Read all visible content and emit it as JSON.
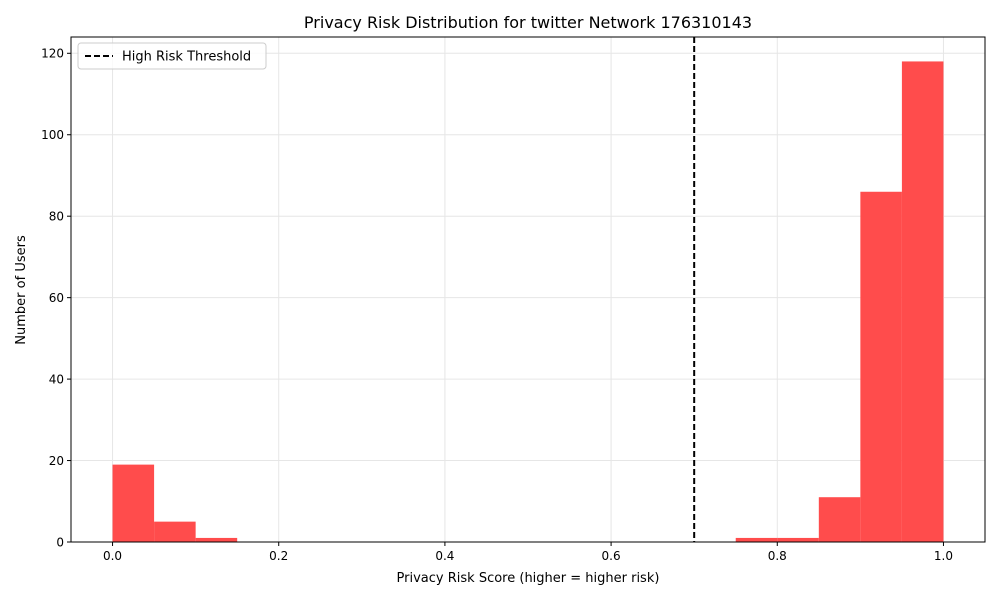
{
  "chart_data": {
    "type": "bar",
    "title": "Privacy Risk Distribution for twitter Network 176310143",
    "xlabel": "Privacy Risk Score (higher = higher risk)",
    "ylabel": "Number of Users",
    "xlim": [
      -0.05,
      1.05
    ],
    "ylim": [
      0,
      124
    ],
    "xticks": [
      0.0,
      0.2,
      0.4,
      0.6,
      0.8,
      1.0
    ],
    "xtick_labels": [
      "0.0",
      "0.2",
      "0.4",
      "0.6",
      "0.8",
      "1.0"
    ],
    "yticks": [
      0,
      20,
      40,
      60,
      80,
      100,
      120
    ],
    "ytick_labels": [
      "0",
      "20",
      "40",
      "60",
      "80",
      "100",
      "120"
    ],
    "grid": true,
    "bar_color": "#ff4c4c",
    "bins": [
      {
        "start": 0.0,
        "end": 0.05,
        "count": 19
      },
      {
        "start": 0.05,
        "end": 0.1,
        "count": 5
      },
      {
        "start": 0.1,
        "end": 0.15,
        "count": 1
      },
      {
        "start": 0.75,
        "end": 0.8,
        "count": 1
      },
      {
        "start": 0.8,
        "end": 0.85,
        "count": 1
      },
      {
        "start": 0.85,
        "end": 0.9,
        "count": 11
      },
      {
        "start": 0.9,
        "end": 0.95,
        "count": 86
      },
      {
        "start": 0.95,
        "end": 1.0,
        "count": 118
      }
    ],
    "threshold": {
      "value": 0.7,
      "label": "High Risk Threshold",
      "color": "#000000",
      "style": "dashed"
    },
    "legend": {
      "placement": "top-left",
      "entries": [
        "High Risk Threshold"
      ]
    }
  }
}
